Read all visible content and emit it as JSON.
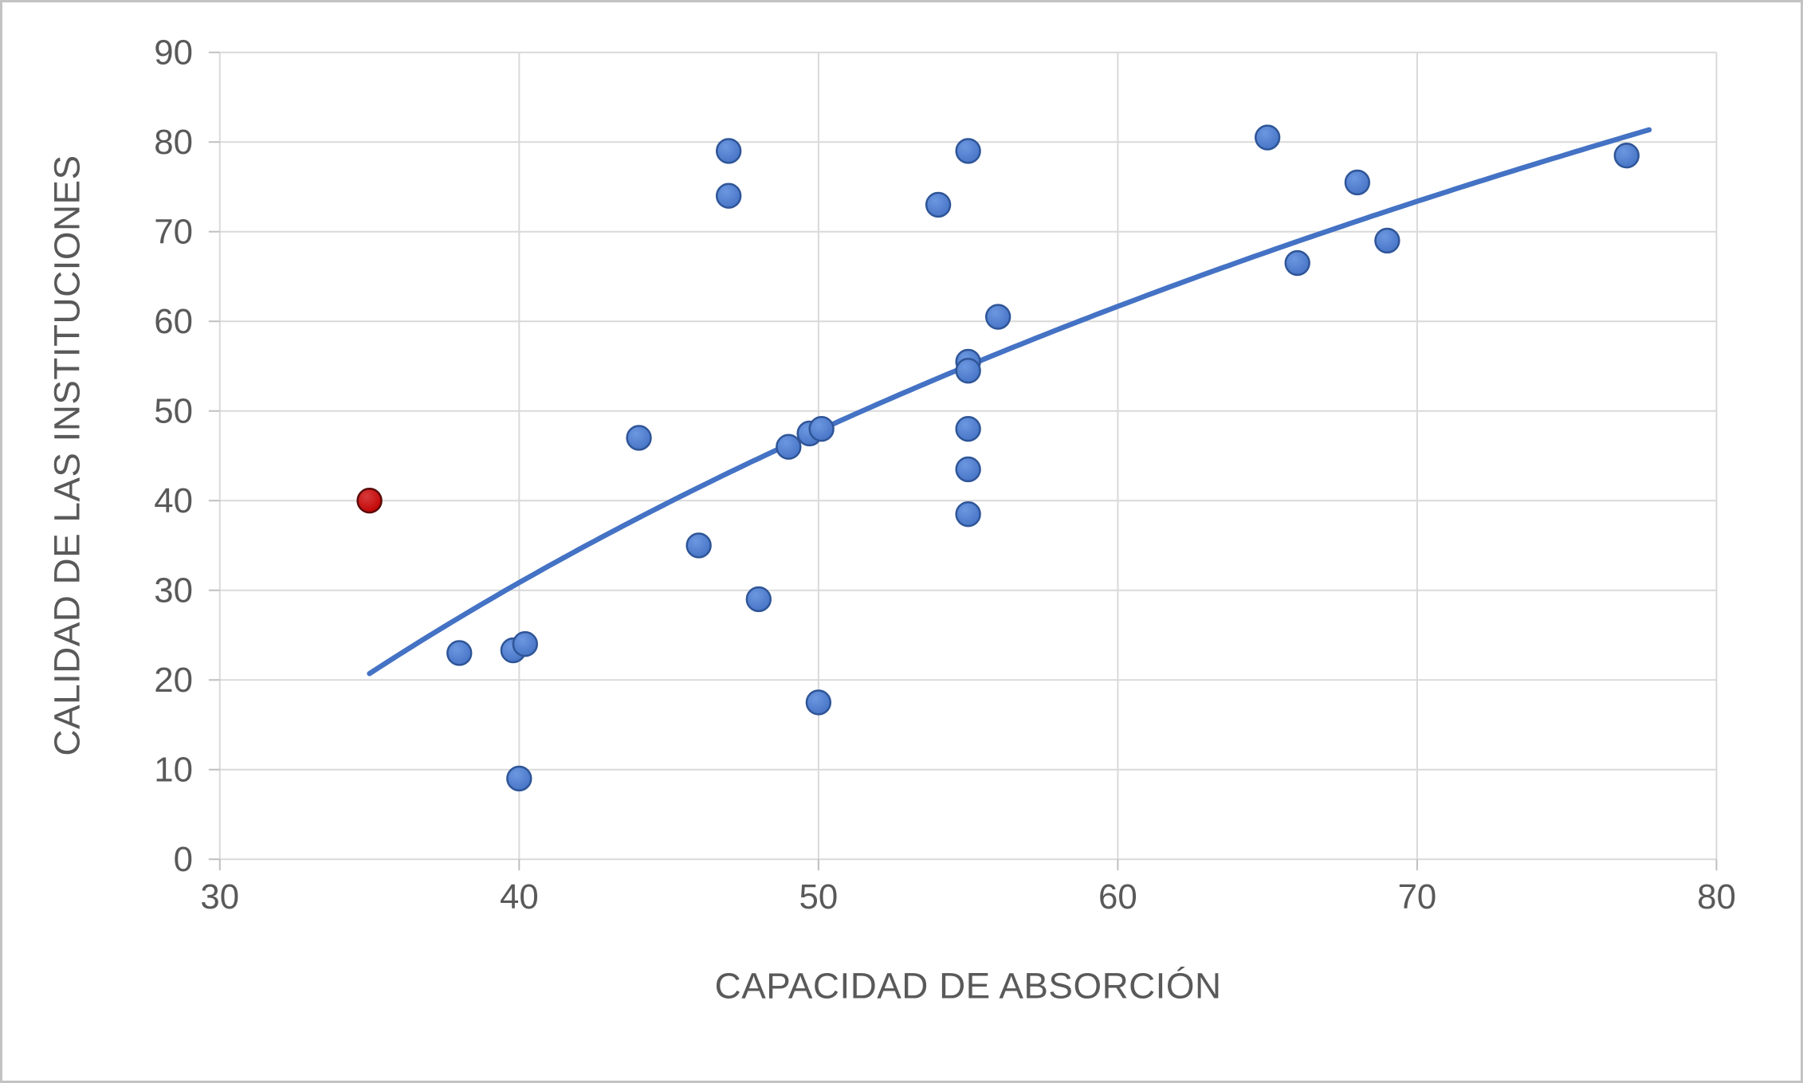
{
  "colors": {
    "gridline": "#d9d9d9",
    "axis": "#bfbfbf",
    "text": "#595959",
    "frame_border": "#c3c3c3",
    "series_main": "#4472c4",
    "series_highlight": "#c00000"
  },
  "chart_data": {
    "type": "scatter",
    "title": "",
    "xlabel": "CAPACIDAD DE ABSORCIÓN",
    "ylabel": "CALIDAD DE LAS INSTITUCIONES",
    "xlim": [
      30,
      80
    ],
    "ylim": [
      0,
      90
    ],
    "x_ticks": [
      30,
      40,
      50,
      60,
      70,
      80
    ],
    "y_ticks": [
      0,
      10,
      20,
      30,
      40,
      50,
      60,
      70,
      80,
      90
    ],
    "grid": true,
    "legend": "none",
    "series": [
      {
        "name": "main",
        "fill": "#4472c4",
        "fill_light": "#6c97e0",
        "edge": "#2f5597",
        "points": [
          [
            38,
            23
          ],
          [
            39.8,
            23.3
          ],
          [
            40.2,
            24
          ],
          [
            40,
            9
          ],
          [
            44,
            47
          ],
          [
            46,
            35
          ],
          [
            47,
            79
          ],
          [
            47,
            74
          ],
          [
            48,
            29
          ],
          [
            49,
            46
          ],
          [
            49.7,
            47.5
          ],
          [
            50.1,
            48
          ],
          [
            50,
            17.5
          ],
          [
            54,
            73
          ],
          [
            55,
            79
          ],
          [
            55,
            55.5
          ],
          [
            55,
            54.5
          ],
          [
            55,
            48
          ],
          [
            55,
            43.5
          ],
          [
            55,
            38.5
          ],
          [
            56,
            60.5
          ],
          [
            65,
            80.5
          ],
          [
            66,
            66.5
          ],
          [
            68,
            75.5
          ],
          [
            69,
            69
          ],
          [
            77,
            78.5
          ]
        ]
      },
      {
        "name": "highlight",
        "fill": "#c00000",
        "fill_light": "#d63a3a",
        "edge": "#5a0a0a",
        "points": [
          [
            35,
            40
          ]
        ]
      }
    ],
    "trendline": {
      "type": "logarithmic",
      "a": 76.0,
      "b": -249.5,
      "x_start": 35,
      "x_end": 77.8,
      "color": "#4472c4"
    }
  }
}
